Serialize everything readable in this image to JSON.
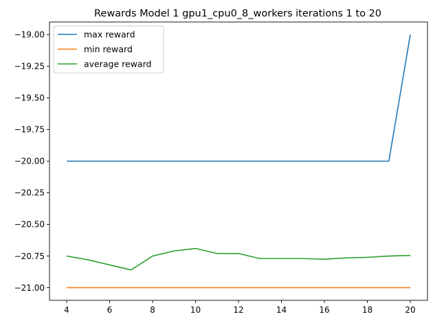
{
  "chart_data": {
    "type": "line",
    "title": "Rewards Model 1 gpu1_cpu0_8_workers iterations 1 to 20",
    "xlabel": "",
    "ylabel": "",
    "x": [
      4,
      5,
      6,
      7,
      8,
      9,
      10,
      11,
      12,
      13,
      14,
      15,
      16,
      17,
      18,
      19,
      20
    ],
    "xlim": [
      3.2,
      20.8
    ],
    "ylim": [
      -21.1,
      -18.9
    ],
    "xticks": [
      4,
      6,
      8,
      10,
      12,
      14,
      16,
      18,
      20
    ],
    "xtick_labels": [
      "4",
      "6",
      "8",
      "10",
      "12",
      "14",
      "16",
      "18",
      "20"
    ],
    "yticks": [
      -19.0,
      -19.25,
      -19.5,
      -19.75,
      -20.0,
      -20.25,
      -20.5,
      -20.75,
      -21.0
    ],
    "ytick_labels": [
      "−19.00",
      "−19.25",
      "−19.50",
      "−19.75",
      "−20.00",
      "−20.25",
      "−20.50",
      "−20.75",
      "−21.00"
    ],
    "grid": false,
    "legend_position": "top-left",
    "series": [
      {
        "name": "max reward",
        "color": "#1f77b4",
        "values": [
          -20.0,
          -20.0,
          -20.0,
          -20.0,
          -20.0,
          -20.0,
          -20.0,
          -20.0,
          -20.0,
          -20.0,
          -20.0,
          -20.0,
          -20.0,
          -20.0,
          -20.0,
          -20.0,
          -19.0
        ]
      },
      {
        "name": "min reward",
        "color": "#ff7f0e",
        "values": [
          -21.0,
          -21.0,
          -21.0,
          -21.0,
          -21.0,
          -21.0,
          -21.0,
          -21.0,
          -21.0,
          -21.0,
          -21.0,
          -21.0,
          -21.0,
          -21.0,
          -21.0,
          -21.0,
          -21.0
        ]
      },
      {
        "name": "average reward",
        "color": "#2ca02c",
        "values": [
          -20.75,
          -20.78,
          -20.82,
          -20.86,
          -20.75,
          -20.71,
          -20.69,
          -20.73,
          -20.73,
          -20.77,
          -20.77,
          -20.77,
          -20.775,
          -20.765,
          -20.76,
          -20.75,
          -20.745
        ]
      }
    ]
  }
}
